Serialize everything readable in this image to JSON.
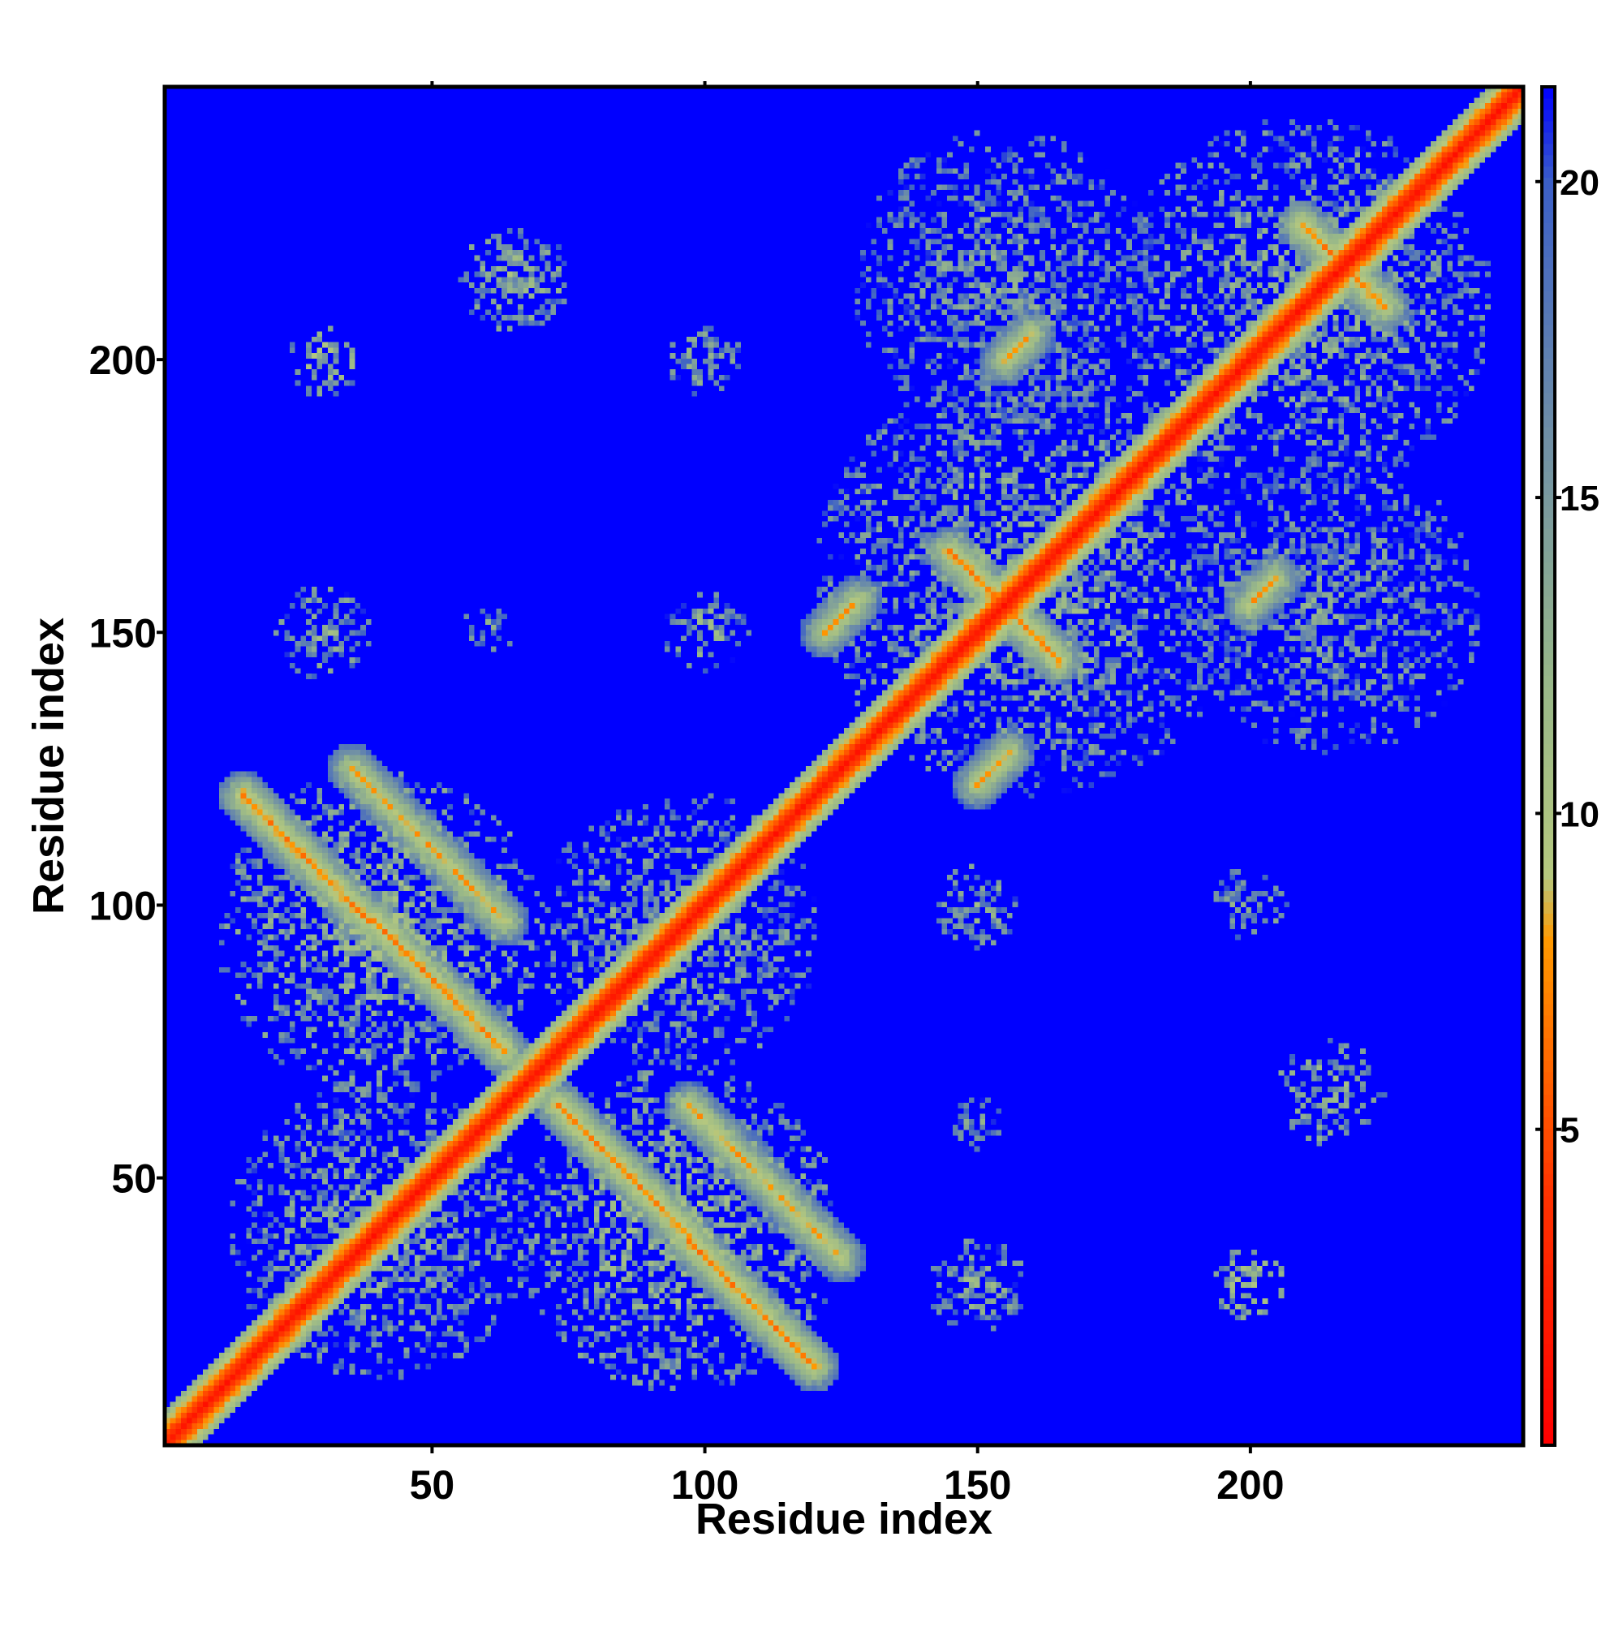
{
  "chart_data": {
    "type": "heatmap",
    "title": "",
    "xlabel": "Residue index",
    "ylabel": "Residue index",
    "n_residues": 250,
    "xlim": [
      1,
      250
    ],
    "ylim": [
      1,
      250
    ],
    "x_ticks": [
      50,
      100,
      150,
      200
    ],
    "y_ticks": [
      50,
      100,
      150,
      200
    ],
    "x_tick_labels": [
      "50",
      "100",
      "150",
      "200"
    ],
    "y_tick_labels": [
      "50",
      "100",
      "150",
      "200"
    ],
    "grid": false,
    "legend": "colorbar-right",
    "value_unit": "distance (Å)",
    "colorbar": {
      "range": [
        0,
        21.5
      ],
      "ticks": [
        5,
        10,
        15,
        20
      ],
      "tick_labels": [
        "5",
        "10",
        "15",
        "20"
      ],
      "colors": [
        {
          "value": 0,
          "color": "#ff0000"
        },
        {
          "value": 4,
          "color": "#ff3300"
        },
        {
          "value": 8,
          "color": "#ff9900"
        },
        {
          "value": 9,
          "color": "#b5c87f"
        },
        {
          "value": 12,
          "color": "#99b888"
        },
        {
          "value": 16,
          "color": "#6f8fa6"
        },
        {
          "value": 20,
          "color": "#3b5fc8"
        },
        {
          "value": 21.5,
          "color": "#0000ff"
        }
      ]
    },
    "background_color": "#0000ff",
    "contact_features": [
      {
        "kind": "diagonal",
        "from": [
          1,
          1
        ],
        "to": [
          250,
          250
        ],
        "value": 1
      },
      {
        "kind": "line",
        "from": [
          15,
          120
        ],
        "to": [
          63,
          73
        ],
        "value": 6
      },
      {
        "kind": "line",
        "from": [
          73,
          63
        ],
        "to": [
          120,
          15
        ],
        "value": 6
      },
      {
        "kind": "line",
        "from": [
          35,
          125
        ],
        "to": [
          63,
          97
        ],
        "value": 7
      },
      {
        "kind": "line",
        "from": [
          97,
          63
        ],
        "to": [
          125,
          35
        ],
        "value": 7
      },
      {
        "kind": "line",
        "from": [
          145,
          165
        ],
        "to": [
          165,
          145
        ],
        "value": 6
      },
      {
        "kind": "line",
        "from": [
          210,
          225
        ],
        "to": [
          225,
          210
        ],
        "value": 6
      },
      {
        "kind": "line",
        "from": [
          122,
          150
        ],
        "to": [
          128,
          156
        ],
        "value": 7
      },
      {
        "kind": "line",
        "from": [
          150,
          122
        ],
        "to": [
          156,
          128
        ],
        "value": 7
      },
      {
        "kind": "line",
        "from": [
          155,
          200
        ],
        "to": [
          160,
          205
        ],
        "value": 7
      },
      {
        "kind": "line",
        "from": [
          200,
          155
        ],
        "to": [
          205,
          160
        ],
        "value": 7
      },
      {
        "kind": "blob",
        "at": [
          40,
          40
        ],
        "radius": 28,
        "value": 13
      },
      {
        "kind": "blob",
        "at": [
          95,
          95
        ],
        "radius": 26,
        "value": 13
      },
      {
        "kind": "blob",
        "at": [
          40,
          95
        ],
        "radius": 30,
        "value": 12
      },
      {
        "kind": "blob",
        "at": [
          95,
          40
        ],
        "radius": 30,
        "value": 12
      },
      {
        "kind": "blob",
        "at": [
          160,
          160
        ],
        "radius": 40,
        "value": 13
      },
      {
        "kind": "blob",
        "at": [
          210,
          210
        ],
        "radius": 35,
        "value": 13
      },
      {
        "kind": "blob",
        "at": [
          155,
          215
        ],
        "radius": 28,
        "value": 14
      },
      {
        "kind": "blob",
        "at": [
          215,
          155
        ],
        "radius": 28,
        "value": 14
      },
      {
        "kind": "blob",
        "at": [
          200,
          30
        ],
        "radius": 7,
        "value": 11
      },
      {
        "kind": "blob",
        "at": [
          30,
          200
        ],
        "radius": 7,
        "value": 11
      },
      {
        "kind": "blob",
        "at": [
          215,
          65
        ],
        "radius": 10,
        "value": 12
      },
      {
        "kind": "blob",
        "at": [
          65,
          215
        ],
        "radius": 10,
        "value": 12
      },
      {
        "kind": "blob",
        "at": [
          200,
          100
        ],
        "radius": 7,
        "value": 13
      },
      {
        "kind": "blob",
        "at": [
          100,
          200
        ],
        "radius": 7,
        "value": 13
      },
      {
        "kind": "blob",
        "at": [
          150,
          100
        ],
        "radius": 8,
        "value": 13
      },
      {
        "kind": "blob",
        "at": [
          100,
          150
        ],
        "radius": 8,
        "value": 13
      },
      {
        "kind": "blob",
        "at": [
          150,
          30
        ],
        "radius": 9,
        "value": 13
      },
      {
        "kind": "blob",
        "at": [
          30,
          150
        ],
        "radius": 9,
        "value": 13
      },
      {
        "kind": "blob",
        "at": [
          150,
          60
        ],
        "radius": 5,
        "value": 14
      },
      {
        "kind": "blob",
        "at": [
          60,
          150
        ],
        "radius": 5,
        "value": 14
      }
    ]
  }
}
